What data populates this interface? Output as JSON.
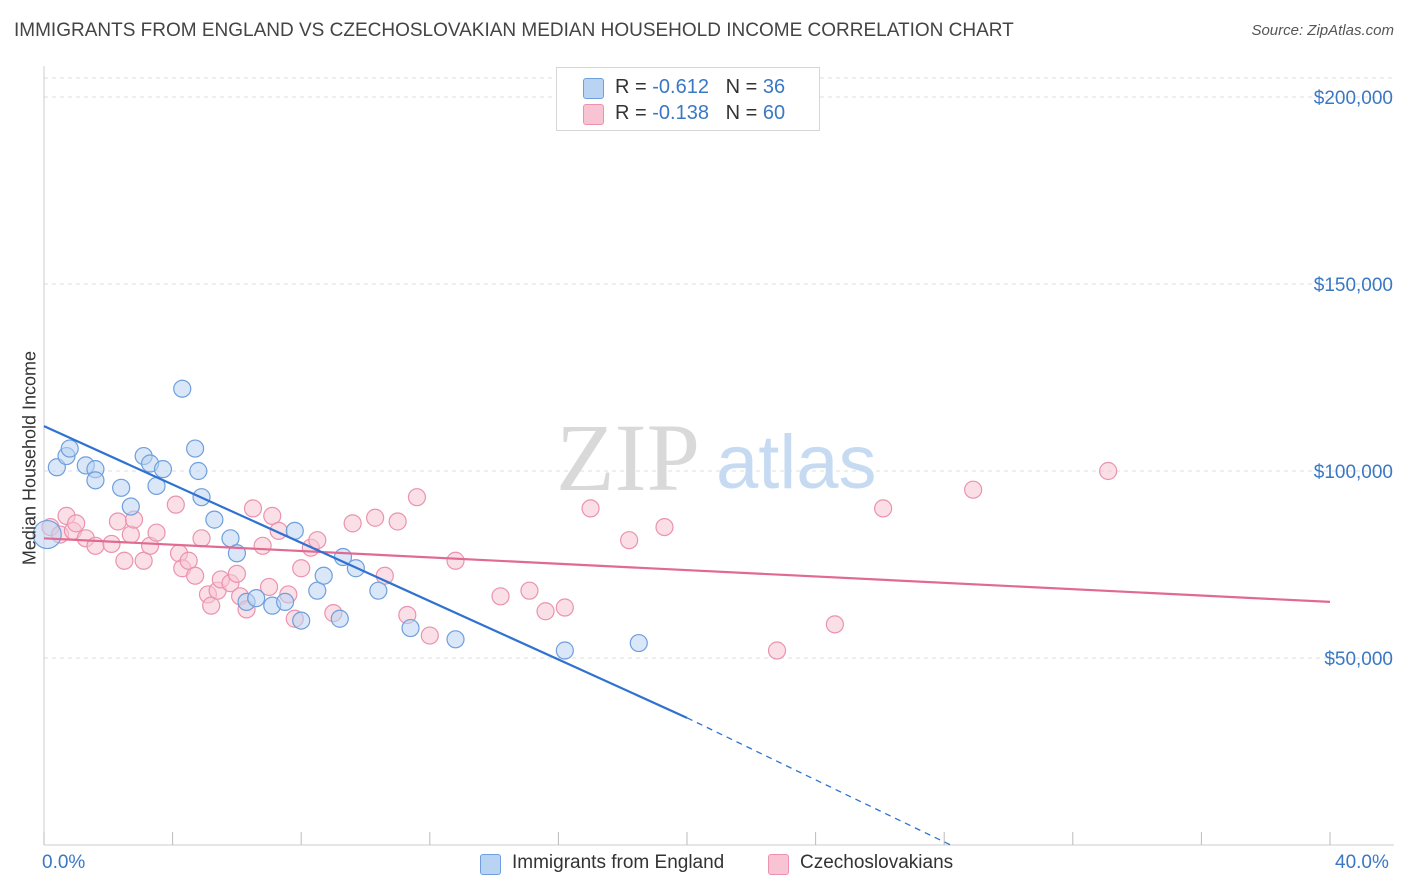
{
  "title": "IMMIGRANTS FROM ENGLAND VS CZECHOSLOVAKIAN MEDIAN HOUSEHOLD INCOME CORRELATION CHART",
  "source": "Source: ZipAtlas.com",
  "watermark": {
    "zip": "ZIP",
    "atlas": "atlas"
  },
  "legend_top": [
    {
      "r_label": "R =",
      "r_value": "-0.612",
      "n_label": "N =",
      "n_value": "36"
    },
    {
      "r_label": "R =",
      "r_value": "-0.138",
      "n_label": "N =",
      "n_value": "60"
    }
  ],
  "legend_bottom": [
    {
      "label": "Immigrants from England"
    },
    {
      "label": "Czechoslovakians"
    }
  ],
  "colors": {
    "england_fill": "#b9d3f2",
    "england_stroke": "#6f9fdc",
    "england_line": "#2f72d1",
    "czech_fill": "#f8c4d4",
    "czech_stroke": "#ea93ae",
    "czech_line": "#e06a92",
    "axis_text": "#3a78c4",
    "grid": "#dedede"
  },
  "chart_data": {
    "type": "scatter",
    "title": "IMMIGRANTS FROM ENGLAND VS CZECHOSLOVAKIAN MEDIAN HOUSEHOLD INCOME CORRELATION CHART",
    "xlabel": "",
    "ylabel": "Median Household Income",
    "xlim": [
      0,
      40
    ],
    "ylim": [
      0,
      200000
    ],
    "x_tick_labels": [
      "0.0%",
      "40.0%"
    ],
    "y_ticks": [
      50000,
      100000,
      150000,
      200000
    ],
    "y_tick_labels": [
      "$50,000",
      "$100,000",
      "$150,000",
      "$200,000"
    ],
    "grid": true,
    "series": [
      {
        "name": "Immigrants from England",
        "r": -0.612,
        "n": 36,
        "points": [
          [
            0.1,
            83000
          ],
          [
            0.4,
            101000
          ],
          [
            0.7,
            104000
          ],
          [
            0.8,
            106000
          ],
          [
            1.3,
            101500
          ],
          [
            1.6,
            100500
          ],
          [
            1.6,
            97500
          ],
          [
            2.4,
            95500
          ],
          [
            2.7,
            90500
          ],
          [
            3.1,
            104000
          ],
          [
            3.3,
            102000
          ],
          [
            3.5,
            96000
          ],
          [
            3.7,
            100500
          ],
          [
            4.3,
            122000
          ],
          [
            4.7,
            106000
          ],
          [
            4.8,
            100000
          ],
          [
            4.9,
            93000
          ],
          [
            5.3,
            87000
          ],
          [
            5.8,
            82000
          ],
          [
            6.0,
            78000
          ],
          [
            6.3,
            65000
          ],
          [
            6.6,
            66000
          ],
          [
            7.1,
            64000
          ],
          [
            7.5,
            65000
          ],
          [
            7.8,
            84000
          ],
          [
            8.0,
            60000
          ],
          [
            8.5,
            68000
          ],
          [
            8.7,
            72000
          ],
          [
            9.2,
            60500
          ],
          [
            9.3,
            77000
          ],
          [
            9.7,
            74000
          ],
          [
            10.4,
            68000
          ],
          [
            11.4,
            58000
          ],
          [
            12.8,
            55000
          ],
          [
            16.2,
            52000
          ],
          [
            18.5,
            54000
          ]
        ]
      },
      {
        "name": "Czechoslovakians",
        "r": -0.138,
        "n": 60,
        "points": [
          [
            0.2,
            85000
          ],
          [
            0.5,
            83000
          ],
          [
            0.7,
            88000
          ],
          [
            0.9,
            84000
          ],
          [
            1.0,
            86000
          ],
          [
            1.3,
            82000
          ],
          [
            1.6,
            80000
          ],
          [
            2.1,
            80500
          ],
          [
            2.3,
            86500
          ],
          [
            2.5,
            76000
          ],
          [
            2.7,
            83000
          ],
          [
            2.8,
            87000
          ],
          [
            3.1,
            76000
          ],
          [
            3.3,
            80000
          ],
          [
            3.5,
            83500
          ],
          [
            4.1,
            91000
          ],
          [
            4.2,
            78000
          ],
          [
            4.3,
            74000
          ],
          [
            4.5,
            76000
          ],
          [
            4.7,
            72000
          ],
          [
            4.9,
            82000
          ],
          [
            5.1,
            67000
          ],
          [
            5.2,
            64000
          ],
          [
            5.4,
            68000
          ],
          [
            5.5,
            71000
          ],
          [
            5.8,
            70000
          ],
          [
            6.0,
            72500
          ],
          [
            6.1,
            66500
          ],
          [
            6.3,
            63000
          ],
          [
            6.5,
            90000
          ],
          [
            6.8,
            80000
          ],
          [
            7.0,
            69000
          ],
          [
            7.1,
            88000
          ],
          [
            7.3,
            84000
          ],
          [
            7.6,
            67000
          ],
          [
            7.8,
            60500
          ],
          [
            8.0,
            74000
          ],
          [
            8.3,
            79500
          ],
          [
            8.5,
            81500
          ],
          [
            9.0,
            62000
          ],
          [
            9.6,
            86000
          ],
          [
            10.3,
            87500
          ],
          [
            10.6,
            72000
          ],
          [
            11.0,
            86500
          ],
          [
            11.3,
            61500
          ],
          [
            11.6,
            93000
          ],
          [
            12.0,
            56000
          ],
          [
            12.8,
            76000
          ],
          [
            14.2,
            66500
          ],
          [
            15.1,
            68000
          ],
          [
            15.6,
            62500
          ],
          [
            16.2,
            63500
          ],
          [
            17.0,
            90000
          ],
          [
            18.2,
            81500
          ],
          [
            19.3,
            85000
          ],
          [
            22.8,
            52000
          ],
          [
            24.6,
            59000
          ],
          [
            26.1,
            90000
          ],
          [
            28.9,
            95000
          ],
          [
            33.1,
            100000
          ]
        ]
      }
    ],
    "trend_lines": [
      {
        "series": "Immigrants from England",
        "x_start": 0,
        "y_start": 112000,
        "x_end": 20,
        "y_end": 34000,
        "dashed_to_x": 28.2,
        "dashed_to_y": 0
      },
      {
        "series": "Czechoslovakians",
        "x_start": 0,
        "y_start": 82000,
        "x_end": 40,
        "y_end": 65000
      }
    ]
  }
}
